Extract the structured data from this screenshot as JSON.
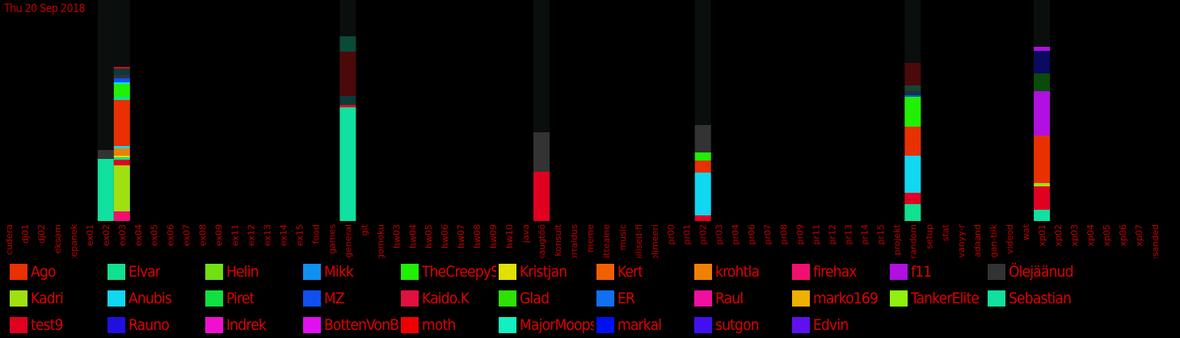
{
  "date": "Thu 20 Sep 2018",
  "chart_data": {
    "type": "stacked-bar",
    "y_max": 274,
    "categories": [
      "cudera",
      "dj01",
      "dj02",
      "eksam",
      "ettepanek",
      "ex01",
      "ex02",
      "ex03",
      "ex04",
      "ex05",
      "ex06",
      "ex07",
      "ex08",
      "ex09",
      "ex11",
      "ex12",
      "ex13",
      "ex14",
      "ex15",
      "food",
      "games",
      "general",
      "git",
      "gomoku",
      "hw03",
      "hw04",
      "hw05",
      "hw06",
      "hw07",
      "hw08",
      "hw09",
      "hw10",
      "java",
      "kaugtöö",
      "konsult",
      "korraldus",
      "meme",
      "mitteaine",
      "music",
      "ohilised-fi",
      "polimeeri",
      "pr00",
      "pr01",
      "pr02",
      "pr03",
      "pr04",
      "pr06",
      "pr07",
      "pr08",
      "pr09",
      "pr11",
      "pr12",
      "pr13",
      "pr14",
      "pr15",
      "projekt",
      "random",
      "setup",
      "stat",
      "syvanyy-r",
      "teadaand",
      "vegan-tiik",
      "videod",
      "wat",
      "xp01",
      "xp02",
      "xp03",
      "xp04",
      "xp05",
      "xp06",
      "xp07",
      "ülesanded"
    ],
    "background_heights": {
      "ex02": 274,
      "ex03": 274,
      "general": 274,
      "kaugtöö": 274,
      "pr02": 274,
      "random": 274,
      "xp01": 274
    },
    "series_colors": {
      "Ago": "#e83000",
      "Elvar": "#10e090",
      "Helin": "#70e010",
      "Mikk": "#1090f0",
      "TheCreepySh": "#20f000",
      "Kristjan": "#e0e000",
      "Kert": "#f06000",
      "krohtla": "#f08000",
      "firehax": "#f01070",
      "f11": "#b010e0",
      "Ölejäänud": "#333333",
      "Kadri": "#a0e010",
      "Anubis": "#10d8f0",
      "Piret": "#10e040",
      "MZ": "#1050f0",
      "Kaido.K": "#e01040",
      "Glad": "#30e000",
      "ER": "#1070f0",
      "Raul": "#f010a0",
      "marko169": "#f0b000",
      "TankerElite": "#90f010",
      "Sebastian": "#10e0a0",
      "test9": "#e00020",
      "Rauno": "#2010e0",
      "Indrek": "#f010d0",
      "BottenVonBot": "#e010f0",
      "moth": "#f00000",
      "MajorMoopsy": "#10f0c0",
      "markal": "#0010f0",
      "sutgon": "#4010f0",
      "Edvin": "#6010f0",
      "dark_green": "#0a4a38",
      "dark_red": "#4a0a0a",
      "dark_teal": "#0a3a3a",
      "dark_navy": "#0a0a60",
      "dark_green2": "#0a4a0a"
    },
    "stacks": {
      "ex02": [
        [
          "Sebastian",
          77
        ],
        [
          "Ölejäänud",
          11
        ]
      ],
      "ex03": [
        [
          "firehax",
          12
        ],
        [
          "Kadri",
          57
        ],
        [
          "test9",
          7
        ],
        [
          "Elvar",
          3
        ],
        [
          "Kristjan",
          2
        ],
        [
          "krohtla",
          9
        ],
        [
          "Anubis",
          3
        ],
        [
          "Ago",
          57
        ],
        [
          "Elvar",
          4
        ],
        [
          "TheCreepySh",
          16
        ],
        [
          "Anubis",
          2
        ],
        [
          "MZ",
          5
        ],
        [
          "Ölejäänud",
          4
        ],
        [
          "dark_teal",
          8
        ],
        [
          "test9",
          2
        ]
      ],
      "general": [
        [
          "Sebastian",
          141
        ],
        [
          "test9",
          3
        ],
        [
          "dark_teal",
          11
        ],
        [
          "dark_red",
          55
        ],
        [
          "dark_green",
          19
        ]
      ],
      "kaugtöö": [
        [
          "test9",
          61
        ],
        [
          "Ölejäänud",
          49
        ]
      ],
      "pr02": [
        [
          "test9",
          7
        ],
        [
          "Anubis",
          53
        ],
        [
          "Ago",
          15
        ],
        [
          "TheCreepySh",
          10
        ],
        [
          "Ölejäänud",
          34
        ]
      ],
      "random": [
        [
          "Elvar",
          21
        ],
        [
          "test9",
          14
        ],
        [
          "Anubis",
          46
        ],
        [
          "Ago",
          36
        ],
        [
          "TheCreepySh",
          37
        ],
        [
          "MZ",
          2
        ],
        [
          "dark_teal",
          5
        ],
        [
          "Ölejäänud",
          3
        ],
        [
          "dark_green",
          4
        ],
        [
          "dark_red",
          28
        ]
      ],
      "xp01": [
        [
          "Sebastian",
          14
        ],
        [
          "test9",
          29
        ],
        [
          "Kadri",
          4
        ],
        [
          "Ago",
          59
        ],
        [
          "f11",
          55
        ],
        [
          "dark_green2",
          22
        ],
        [
          "dark_navy",
          28
        ],
        [
          "f11",
          5
        ]
      ]
    },
    "legend": [
      "Ago",
      "Elvar",
      "Helin",
      "Mikk",
      "TheCreepySh",
      "Kristjan",
      "Kert",
      "krohtla",
      "firehax",
      "f11",
      "Ölejäänud",
      "Kadri",
      "Anubis",
      "Piret",
      "MZ",
      "Kaido.K",
      "Glad",
      "ER",
      "Raul",
      "marko169",
      "TankerElite",
      "Sebastian",
      "test9",
      "Rauno",
      "Indrek",
      "BottenVonBot",
      "moth",
      "MajorMoopsy",
      "markal",
      "sutgon",
      "Edvin"
    ]
  }
}
